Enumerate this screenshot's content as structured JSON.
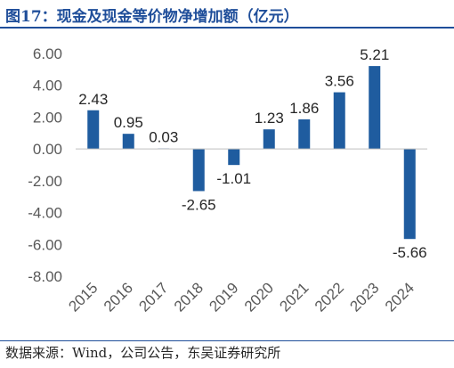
{
  "title": "图17：现金及现金等价物净增加额（亿元）",
  "source": "数据来源：Wind，公司公告，东吴证券研究所",
  "colors": {
    "bar": "#1f5c9f",
    "title": "#1f4e9a",
    "axis": "#bfbfbf"
  },
  "chart_data": {
    "type": "bar",
    "title": "图17：现金及现金等价物净增加额（亿元）",
    "xlabel": "",
    "ylabel": "",
    "ylim": [
      -8,
      6
    ],
    "yticks": [
      "6.00",
      "4.00",
      "2.00",
      "0.00",
      "-2.00",
      "-4.00",
      "-6.00",
      "-8.00"
    ],
    "ytick_values": [
      6,
      4,
      2,
      0,
      -2,
      -4,
      -6,
      -8
    ],
    "categories": [
      "2015",
      "2016",
      "2017",
      "2018",
      "2019",
      "2020",
      "2021",
      "2022",
      "2023",
      "2024"
    ],
    "values": [
      2.43,
      0.95,
      0.03,
      -2.65,
      -1.01,
      1.23,
      1.86,
      3.56,
      5.21,
      -5.66
    ],
    "value_labels": [
      "2.43",
      "0.95",
      "0.03",
      "-2.65",
      "-1.01",
      "1.23",
      "1.86",
      "3.56",
      "5.21",
      "-5.66"
    ],
    "grid": false,
    "legend": "none"
  }
}
